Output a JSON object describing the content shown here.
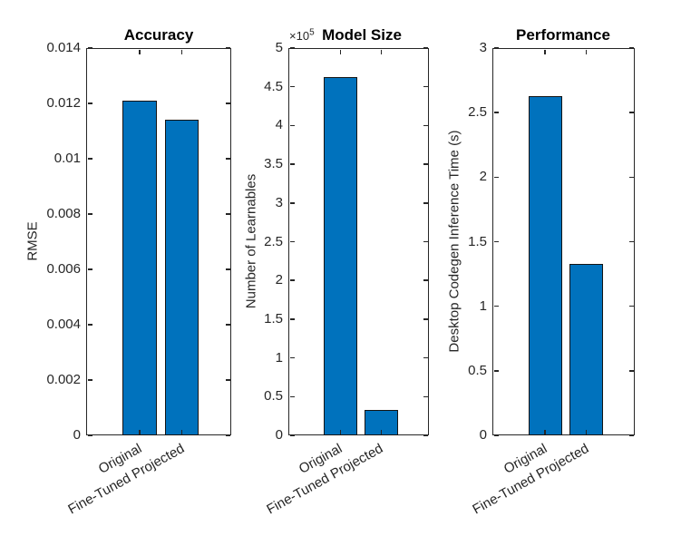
{
  "figure": {
    "background_color": "#ffffff",
    "axis_color": "#262626",
    "title_color": "#000000"
  },
  "chart_data": [
    {
      "type": "bar",
      "title": "Accuracy",
      "ylabel": "RMSE",
      "categories": [
        "Original",
        "Fine-Tuned Projected"
      ],
      "values": [
        0.0121,
        0.0114
      ],
      "ylim": [
        0,
        0.014
      ],
      "yticks": [
        0,
        0.002,
        0.004,
        0.006,
        0.008,
        0.01,
        0.012,
        0.014
      ],
      "ytick_labels": [
        "0",
        "0.002",
        "0.004",
        "0.006",
        "0.008",
        "0.01",
        "0.012",
        "0.014"
      ],
      "grid": false,
      "bar_color": "#0072BD",
      "bar_edge_color": "#141414"
    },
    {
      "type": "bar",
      "title": "Model Size",
      "ylabel": "Number of Learnables",
      "exponent": {
        "base": "×10",
        "power": "5"
      },
      "value_scale": 100000,
      "categories": [
        "Original",
        "Fine-Tuned Projected"
      ],
      "values": [
        4.63,
        0.33
      ],
      "ylim": [
        0,
        5
      ],
      "yticks": [
        0,
        0.5,
        1,
        1.5,
        2,
        2.5,
        3,
        3.5,
        4,
        4.5,
        5
      ],
      "ytick_labels": [
        "0",
        "0.5",
        "1",
        "1.5",
        "2",
        "2.5",
        "3",
        "3.5",
        "4",
        "4.5",
        "5"
      ],
      "grid": false,
      "bar_color": "#0072BD",
      "bar_edge_color": "#141414"
    },
    {
      "type": "bar",
      "title": "Performance",
      "ylabel": "Desktop Codegen Inference Time (s)",
      "categories": [
        "Original",
        "Fine-Tuned Projected"
      ],
      "values": [
        2.63,
        1.33
      ],
      "ylim": [
        0,
        3
      ],
      "yticks": [
        0,
        0.5,
        1,
        1.5,
        2,
        2.5,
        3
      ],
      "ytick_labels": [
        "0",
        "0.5",
        "1",
        "1.5",
        "2",
        "2.5",
        "3"
      ],
      "grid": false,
      "bar_color": "#0072BD",
      "bar_edge_color": "#141414"
    }
  ]
}
